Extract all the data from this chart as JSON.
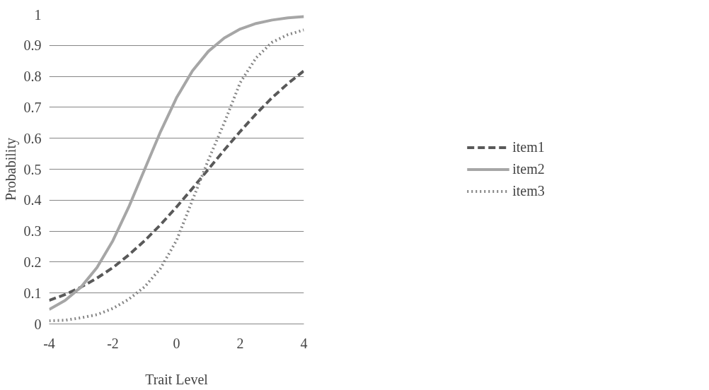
{
  "chart_data": {
    "type": "line",
    "xlabel": "Trait Level",
    "ylabel": "Probability",
    "xlim": [
      -4,
      4
    ],
    "xticks": [
      -4,
      -2,
      0,
      2,
      4
    ],
    "ylim": [
      0,
      1
    ],
    "yticks": [
      0,
      0.1,
      0.2,
      0.3,
      0.4,
      0.5,
      0.6,
      0.7,
      0.8,
      0.9,
      1
    ],
    "grid": "y",
    "legend": "right",
    "marker": "none",
    "x": [
      -4,
      -3.5,
      -3,
      -2.5,
      -2,
      -1.5,
      -1,
      -0.5,
      0,
      0.5,
      1,
      1.5,
      2,
      2.5,
      3,
      3.5,
      4
    ],
    "series": [
      {
        "name": "item1",
        "color": "#595959",
        "line_style": "dashed",
        "values": [
          0.076,
          0.095,
          0.119,
          0.148,
          0.182,
          0.223,
          0.269,
          0.321,
          0.378,
          0.438,
          0.5,
          0.562,
          0.622,
          0.679,
          0.731,
          0.777,
          0.818
        ]
      },
      {
        "name": "item2",
        "color": "#a6a6a6",
        "line_style": "solid",
        "values": [
          0.047,
          0.076,
          0.119,
          0.182,
          0.269,
          0.378,
          0.5,
          0.622,
          0.731,
          0.818,
          0.881,
          0.924,
          0.953,
          0.971,
          0.982,
          0.989,
          0.993
        ]
      },
      {
        "name": "item3",
        "color": "#868686",
        "line_style": "dotted",
        "values": [
          0.01,
          0.012,
          0.02,
          0.03,
          0.05,
          0.08,
          0.12,
          0.18,
          0.27,
          0.4,
          0.53,
          0.65,
          0.78,
          0.86,
          0.91,
          0.935,
          0.95
        ]
      }
    ]
  }
}
